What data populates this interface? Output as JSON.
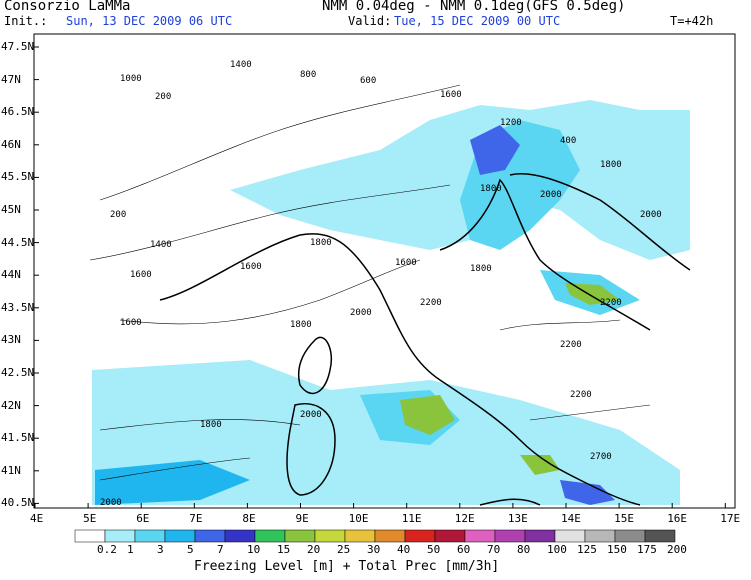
{
  "header": {
    "org": "Consorzio LaMMa",
    "model": "NMM 0.04deg - NMM 0.1deg(GFS 0.5deg)",
    "init_label": "Init.:",
    "init_value": "Sun, 13 DEC 2009  06 UTC",
    "valid_label": "Valid:",
    "valid_value": "Tue, 15 DEC 2009  00 UTC",
    "forecast_step": "T=+42h"
  },
  "axes": {
    "lat_labels": [
      "47.5N",
      "47N",
      "46.5N",
      "46N",
      "45.5N",
      "45N",
      "44.5N",
      "44N",
      "43.5N",
      "43N",
      "42.5N",
      "42N",
      "41.5N",
      "41N",
      "40.5N"
    ],
    "lon_labels": [
      "4E",
      "5E",
      "6E",
      "7E",
      "8E",
      "9E",
      "10E",
      "11E",
      "12E",
      "13E",
      "14E",
      "15E",
      "16E",
      "17E"
    ]
  },
  "contour_labels": [
    "1000",
    "200",
    "1400",
    "800",
    "600",
    "1600",
    "1200",
    "400",
    "1800",
    "2000",
    "2200",
    "2700"
  ],
  "legend": {
    "caption": "Freezing Level [m] + Total Prec [mm/3h]",
    "values": [
      "0.2",
      "1",
      "3",
      "5",
      "7",
      "10",
      "15",
      "20",
      "25",
      "30",
      "40",
      "50",
      "60",
      "70",
      "80",
      "100",
      "125",
      "150",
      "175",
      "200"
    ],
    "colors": [
      "#ffffff",
      "#a6ecf9",
      "#5bd6f2",
      "#1fb5ee",
      "#3f66e8",
      "#3434c8",
      "#2ec45a",
      "#8ac43c",
      "#c4d83a",
      "#e8c23a",
      "#e08a2a",
      "#d8241e",
      "#b01838",
      "#e060c0",
      "#b040b0",
      "#8030a0",
      "#e2e2e2",
      "#b8b8b8",
      "#8c8c8c",
      "#545454"
    ]
  }
}
